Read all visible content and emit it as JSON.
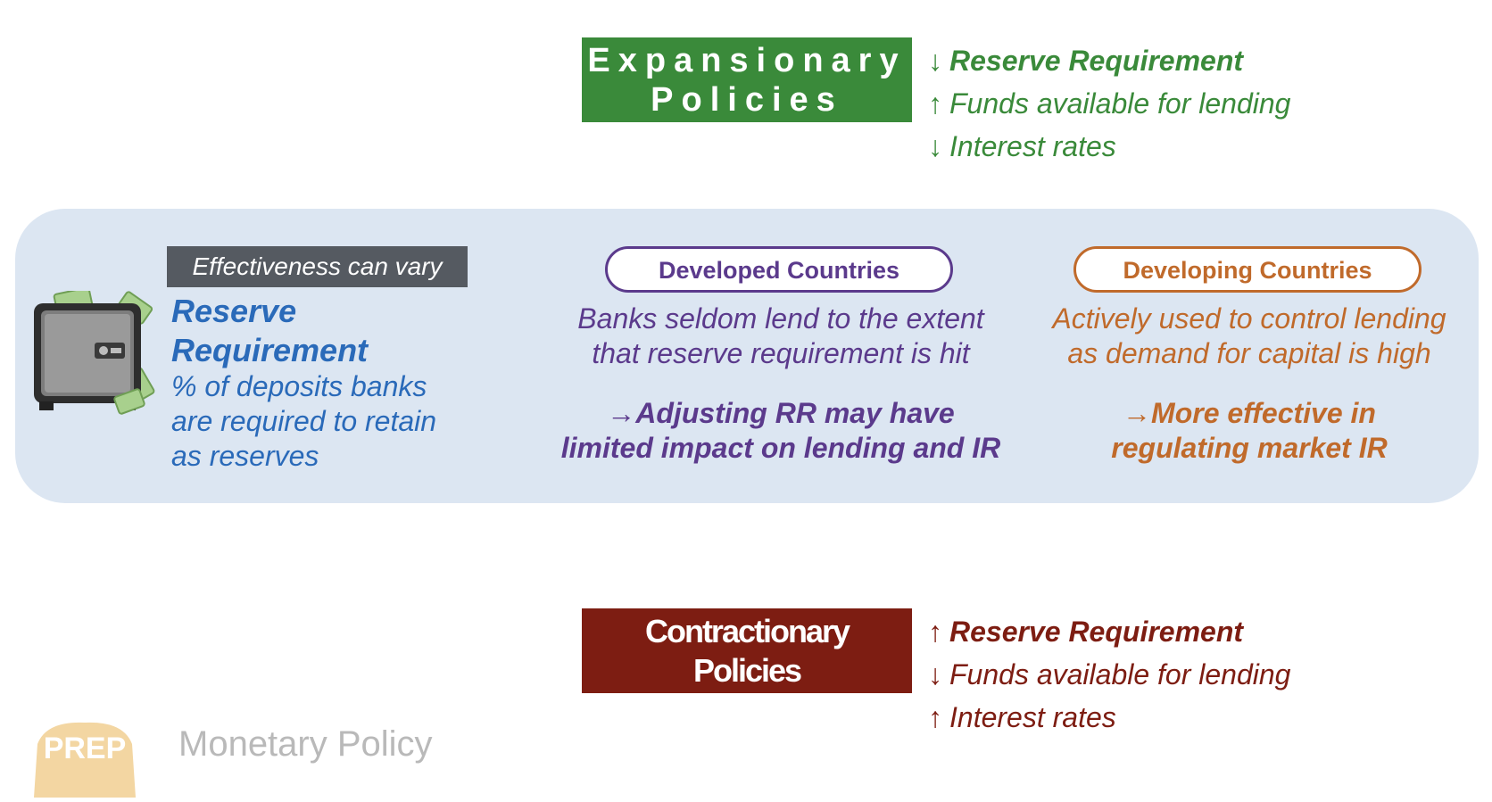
{
  "expansionary": {
    "title_line1": "Expansionary",
    "title_line2": "Policies",
    "effects": [
      {
        "arrow": "↓",
        "text": "Reserve Requirement"
      },
      {
        "arrow": "↑",
        "text": "Funds available for lending"
      },
      {
        "arrow": "↓",
        "text": "Interest rates"
      }
    ],
    "color": "#3a8a3a"
  },
  "contractionary": {
    "title_line1": "Contractionary",
    "title_line2": "Policies",
    "effects": [
      {
        "arrow": "↑",
        "text": "Reserve Requirement"
      },
      {
        "arrow": "↓",
        "text": "Funds available for lending"
      },
      {
        "arrow": "↑",
        "text": "Interest rates"
      }
    ],
    "color": "#7d1d12"
  },
  "panel": {
    "tag": "Effectiveness can vary",
    "reserve": {
      "title_line1": "Reserve",
      "title_line2": "Requirement",
      "desc_line1": "% of deposits banks",
      "desc_line2": "are required to retain",
      "desc_line3": "as reserves"
    },
    "developed": {
      "heading": "Developed Countries",
      "text_line1": "Banks seldom lend to the extent",
      "text_line2": "that reserve requirement is hit",
      "arrow": "→",
      "conclusion_line1": "Adjusting RR may have",
      "conclusion_line2": "limited impact on lending and IR"
    },
    "developing": {
      "heading": "Developing Countries",
      "text_line1": "Actively used to control lending",
      "text_line2": "as demand for capital is high",
      "arrow": "→",
      "conclusion_line1": "More effective in",
      "conclusion_line2": "regulating market IR"
    },
    "icon": "safe-with-money-icon"
  },
  "footer": {
    "badge_text": "PREP",
    "title": "Monetary Policy"
  },
  "colors": {
    "panel_bg": "#dce6f2",
    "reserve_blue": "#2a6ab9",
    "developed_purple": "#5b3a8c",
    "developing_orange": "#c06a2b",
    "tag_gray": "#555a61"
  }
}
